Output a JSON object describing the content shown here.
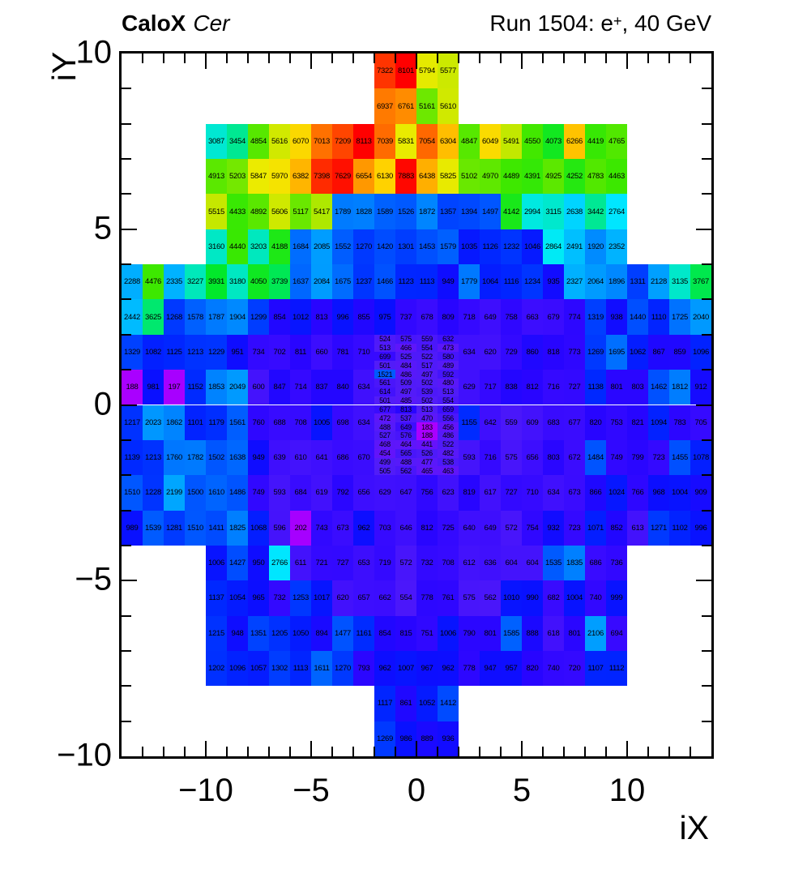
{
  "header": {
    "left_bold": "CaloX",
    "left_italic": "Cer",
    "right_pre": "Run 1504: e",
    "right_sup": "+",
    "right_post": ", 40 GeV"
  },
  "axes": {
    "x": {
      "title": "iX",
      "min": -14,
      "max": 14,
      "major_ticks": [
        -10,
        -5,
        0,
        5,
        10
      ],
      "major_labels": [
        "−10",
        "−5",
        "0",
        "5",
        "10"
      ],
      "minor_step": 1
    },
    "y": {
      "title": "iY",
      "min": -10,
      "max": 10,
      "major_ticks": [
        10,
        5,
        0,
        -5,
        -10
      ],
      "major_labels": [
        "10",
        "5",
        "0",
        "−5",
        "−10"
      ],
      "minor_step": 1
    }
  },
  "chart_data": {
    "type": "heatmap",
    "title": "CaloX Cer — Run 1504: e+, 40 GeV",
    "xlabel": "iX",
    "ylabel": "iY",
    "xlim": [
      -14,
      14
    ],
    "ylim": [
      -10,
      10
    ],
    "zmin": 183,
    "zmax": 8113,
    "grid": false,
    "legend": "none",
    "cell_text": true,
    "palette_stops": [
      [
        0.0,
        [
          170,
          0,
          255
        ]
      ],
      [
        0.02,
        [
          136,
          0,
          255
        ]
      ],
      [
        0.04,
        [
          82,
          28,
          248
        ]
      ],
      [
        0.065,
        [
          55,
          10,
          255
        ]
      ],
      [
        0.08,
        [
          40,
          5,
          255
        ]
      ],
      [
        0.1,
        [
          10,
          15,
          255
        ]
      ],
      [
        0.12,
        [
          0,
          40,
          255
        ]
      ],
      [
        0.17,
        [
          0,
          90,
          255
        ]
      ],
      [
        0.23,
        [
          0,
          150,
          255
        ]
      ],
      [
        0.29,
        [
          0,
          190,
          255
        ]
      ],
      [
        0.33,
        [
          0,
          235,
          255
        ]
      ],
      [
        0.37,
        [
          0,
          232,
          205
        ]
      ],
      [
        0.42,
        [
          0,
          232,
          135
        ]
      ],
      [
        0.47,
        [
          0,
          232,
          45
        ]
      ],
      [
        0.54,
        [
          60,
          232,
          0
        ]
      ],
      [
        0.63,
        [
          110,
          232,
          0
        ]
      ],
      [
        0.67,
        [
          195,
          232,
          0
        ]
      ],
      [
        0.72,
        [
          240,
          235,
          0
        ]
      ],
      [
        0.75,
        [
          255,
          210,
          0
        ]
      ],
      [
        0.8,
        [
          255,
          165,
          0
        ]
      ],
      [
        0.86,
        [
          255,
          115,
          0
        ]
      ],
      [
        0.89,
        [
          255,
          62,
          0
        ]
      ],
      [
        0.94,
        [
          255,
          15,
          0
        ]
      ],
      [
        1.0,
        [
          255,
          0,
          0
        ]
      ]
    ],
    "rows": [
      {
        "y": 10,
        "x0": -2,
        "h": 1,
        "v": [
          7322,
          8101,
          5794,
          5577
        ]
      },
      {
        "y": 9,
        "x0": -2,
        "h": 1,
        "v": [
          6937,
          6761,
          5161,
          5610
        ]
      },
      {
        "y": 8,
        "x0": -10,
        "h": 1,
        "v": [
          3087,
          3454,
          4854,
          5616,
          6070,
          7013,
          7209,
          8113,
          7039,
          5831,
          7054,
          6304,
          4847,
          6049,
          5491,
          4550,
          4073,
          6266,
          4419,
          4765
        ]
      },
      {
        "y": 7,
        "x0": -10,
        "h": 1,
        "v": [
          4913,
          5203,
          5847,
          5970,
          6382,
          7398,
          7629,
          6654,
          6130,
          7883,
          6438,
          5825,
          5102,
          4970,
          4489,
          4391,
          4925,
          4252,
          4783,
          4463
        ]
      },
      {
        "y": 6,
        "x0": -10,
        "h": 1,
        "v": [
          5515,
          4433,
          4892,
          5606,
          5117,
          5417,
          1789,
          1828,
          1589,
          1526,
          1872,
          1357,
          1394,
          1497,
          4142,
          2994,
          3115,
          2638,
          3442,
          2764
        ]
      },
      {
        "y": 5,
        "x0": -10,
        "h": 1,
        "v": [
          3160,
          4440,
          3203,
          4188,
          1684,
          2085,
          1552,
          1270,
          1420,
          1301,
          1453,
          1579,
          1035,
          1126,
          1232,
          1046,
          2864,
          2491,
          1920,
          2352
        ]
      },
      {
        "y": 4,
        "x0": -14,
        "h": 1,
        "v": [
          2288,
          4476,
          2335,
          3227,
          3931,
          3180,
          4050,
          3739,
          1637,
          2084,
          1675,
          1237,
          1466,
          1123,
          1113,
          949,
          1779,
          1064,
          1116,
          1234,
          935,
          2327,
          2064,
          1896,
          1311,
          2128,
          3135,
          3767
        ]
      },
      {
        "y": 3,
        "x0": -14,
        "h": 1,
        "v": [
          2442,
          3625,
          1268,
          1578,
          1787,
          1904,
          1299,
          854,
          1012,
          813,
          996,
          855,
          975,
          737,
          678,
          809,
          718,
          649,
          758,
          663,
          679,
          774,
          1319,
          938,
          1440,
          1110,
          1725,
          2040
        ]
      },
      {
        "y": 2,
        "x0": -14,
        "h": 1,
        "v": [
          1329,
          1082,
          1125,
          1213,
          1229,
          951,
          734,
          702,
          811,
          660,
          781,
          710
        ]
      },
      {
        "y": 2,
        "x0": 2,
        "h": 1,
        "v": [
          634,
          620,
          729,
          860,
          818,
          773,
          1269,
          1695,
          1062,
          867,
          859,
          1096
        ]
      },
      {
        "y": 1,
        "x0": -14,
        "h": 1,
        "v": [
          188,
          981,
          197,
          1152,
          1853,
          2049,
          600,
          847,
          714,
          837,
          840,
          634
        ]
      },
      {
        "y": 1,
        "x0": 2,
        "h": 1,
        "v": [
          629,
          717,
          838,
          812,
          716,
          727,
          1138,
          801,
          803,
          1462,
          1812,
          912
        ]
      },
      {
        "y": 0,
        "x0": -14,
        "h": 1,
        "v": [
          1217,
          2023,
          1862,
          1101,
          1179,
          1561,
          760,
          688,
          708,
          1005,
          698,
          634
        ]
      },
      {
        "y": 0,
        "x0": 2,
        "h": 1,
        "v": [
          1155,
          642,
          559,
          609,
          683,
          677,
          820,
          753,
          821,
          1094,
          783,
          705
        ]
      },
      {
        "y": -1,
        "x0": -14,
        "h": 1,
        "v": [
          1139,
          1213,
          1760,
          1782,
          1502,
          1638,
          949,
          639,
          610,
          641,
          686,
          670
        ]
      },
      {
        "y": -1,
        "x0": 2,
        "h": 1,
        "v": [
          593,
          716,
          575,
          656,
          803,
          672,
          1484,
          749,
          799,
          723,
          1455,
          1078
        ]
      },
      {
        "y": -2,
        "x0": -14,
        "h": 1,
        "v": [
          1510,
          1228,
          2199,
          1500,
          1610,
          1486,
          749,
          593,
          684,
          619,
          792,
          656,
          629,
          647,
          756,
          623,
          819,
          617,
          727,
          710,
          634,
          673,
          866,
          1024,
          766,
          968,
          1004,
          909
        ]
      },
      {
        "y": -3,
        "x0": -14,
        "h": 1,
        "v": [
          989,
          1539,
          1281,
          1510,
          1411,
          1825,
          1068,
          596,
          202,
          743,
          673,
          962,
          703,
          646,
          812,
          725,
          640,
          649,
          572,
          754,
          932,
          723,
          1071,
          852,
          613,
          1271,
          1102,
          996
        ]
      },
      {
        "y": -4,
        "x0": -10,
        "h": 1,
        "v": [
          1006,
          1427,
          950,
          2766,
          611,
          721,
          727,
          653,
          719,
          572,
          732,
          708,
          612,
          636,
          604,
          604,
          1535,
          1835,
          686,
          736
        ]
      },
      {
        "y": -5,
        "x0": -10,
        "h": 1,
        "v": [
          1137,
          1054,
          965,
          732,
          1253,
          1017,
          620,
          657,
          662,
          554,
          778,
          761,
          575,
          562,
          1010,
          990,
          682,
          1004,
          740,
          999
        ]
      },
      {
        "y": -6,
        "x0": -10,
        "h": 1,
        "v": [
          1215,
          948,
          1351,
          1205,
          1050,
          894,
          1477,
          1161,
          854,
          815,
          751,
          1006,
          790,
          801,
          1585,
          888,
          618,
          801,
          2106,
          694
        ]
      },
      {
        "y": -7,
        "x0": -10,
        "h": 1,
        "v": [
          1202,
          1096,
          1057,
          1302,
          1113,
          1611,
          1270,
          793,
          962,
          1007,
          967,
          962,
          778,
          947,
          957,
          820,
          740,
          720,
          1107,
          1112
        ]
      },
      {
        "y": -8,
        "x0": -2,
        "h": 1,
        "v": [
          1117,
          861,
          1052,
          1412
        ]
      },
      {
        "y": -9,
        "x0": -2,
        "h": 1,
        "v": [
          1269,
          986,
          889,
          936
        ]
      },
      {
        "y": 2.0,
        "x0": -2,
        "h": 0.25,
        "fine": true,
        "v": [
          524,
          575,
          559,
          632
        ]
      },
      {
        "y": 1.75,
        "x0": -2,
        "h": 0.25,
        "fine": true,
        "v": [
          513,
          466,
          554,
          473
        ]
      },
      {
        "y": 1.5,
        "x0": -2,
        "h": 0.25,
        "fine": true,
        "v": [
          699,
          525,
          522,
          580
        ]
      },
      {
        "y": 1.25,
        "x0": -2,
        "h": 0.25,
        "fine": true,
        "v": [
          501,
          484,
          517,
          489
        ]
      },
      {
        "y": 1.0,
        "x0": -2,
        "h": 0.25,
        "fine": true,
        "v": [
          1521,
          486,
          497,
          592
        ]
      },
      {
        "y": 0.75,
        "x0": -2,
        "h": 0.25,
        "fine": true,
        "v": [
          561,
          509,
          502,
          480
        ]
      },
      {
        "y": 0.5,
        "x0": -2,
        "h": 0.25,
        "fine": true,
        "v": [
          614,
          497,
          539,
          513
        ]
      },
      {
        "y": 0.25,
        "x0": -2,
        "h": 0.25,
        "fine": true,
        "v": [
          501,
          485,
          502,
          554
        ]
      },
      {
        "y": 0.0,
        "x0": -2,
        "h": 0.25,
        "fine": true,
        "v": [
          677,
          813,
          513,
          659
        ]
      },
      {
        "y": -0.25,
        "x0": -2,
        "h": 0.25,
        "fine": true,
        "v": [
          472,
          537,
          470,
          556
        ]
      },
      {
        "y": -0.5,
        "x0": -2,
        "h": 0.25,
        "fine": true,
        "v": [
          488,
          649,
          183,
          456
        ]
      },
      {
        "y": -0.75,
        "x0": -2,
        "h": 0.25,
        "fine": true,
        "v": [
          527,
          576,
          188,
          486
        ]
      },
      {
        "y": -1.0,
        "x0": -2,
        "h": 0.25,
        "fine": true,
        "v": [
          468,
          464,
          441,
          522
        ]
      },
      {
        "y": -1.25,
        "x0": -2,
        "h": 0.25,
        "fine": true,
        "v": [
          454,
          565,
          526,
          482
        ]
      },
      {
        "y": -1.5,
        "x0": -2,
        "h": 0.25,
        "fine": true,
        "v": [
          499,
          488,
          477,
          538
        ]
      },
      {
        "y": -1.75,
        "x0": -2,
        "h": 0.25,
        "fine": true,
        "v": [
          505,
          562,
          465,
          463
        ]
      }
    ]
  }
}
